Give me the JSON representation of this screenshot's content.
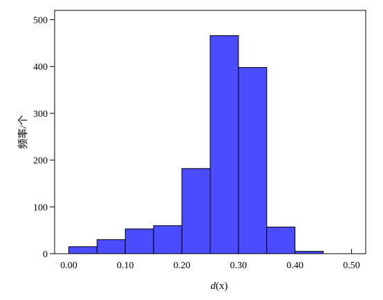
{
  "chart_data": {
    "type": "bar",
    "xlabel_prefix": "d",
    "xlabel_suffix": "(x)",
    "ylabel": "频率/个",
    "xlim": [
      -0.025,
      0.525
    ],
    "ylim": [
      0,
      520
    ],
    "xticks": [
      0.0,
      0.1,
      0.2,
      0.3,
      0.4,
      0.5
    ],
    "xtick_labels": [
      "0.00",
      "0.10",
      "0.20",
      "0.30",
      "0.40",
      "0.50"
    ],
    "yticks": [
      0,
      100,
      200,
      300,
      400,
      500
    ],
    "ytick_labels": [
      "0",
      "100",
      "200",
      "300",
      "400",
      "500"
    ],
    "bin_edges": [
      0.0,
      0.05,
      0.1,
      0.15,
      0.2,
      0.25,
      0.3,
      0.35,
      0.4,
      0.45
    ],
    "values": [
      15,
      30,
      53,
      60,
      182,
      466,
      398,
      57,
      5
    ],
    "bar_color": "#4b4bff",
    "grid": false
  }
}
